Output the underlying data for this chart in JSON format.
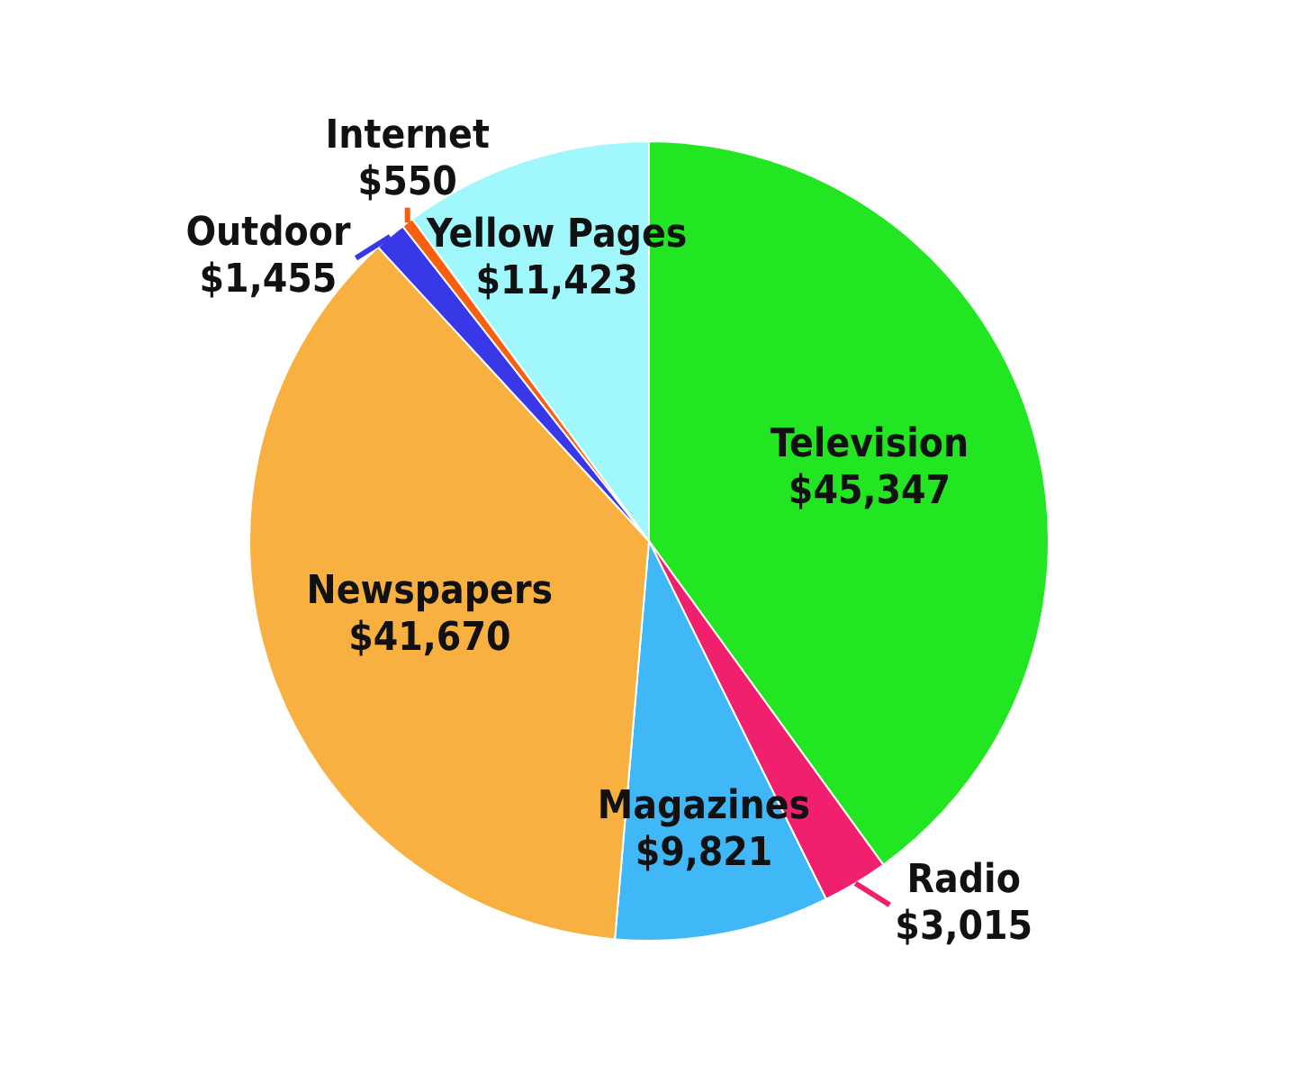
{
  "chart_data": {
    "type": "pie",
    "categories": [
      "Television",
      "Radio",
      "Magazines",
      "Newspapers",
      "Outdoor",
      "Internet",
      "Yellow Pages"
    ],
    "values": [
      45347,
      3015,
      9821,
      41670,
      1455,
      550,
      11423
    ],
    "value_labels": [
      "$45,347",
      "$3,015",
      "$9,821",
      "$41,670",
      "$1,455",
      "$550",
      "$11,423"
    ],
    "colors": [
      "#22e622",
      "#f0206e",
      "#40b8f8",
      "#f8b040",
      "#3838e8",
      "#f86010",
      "#a0f8fc"
    ],
    "legend": false
  }
}
